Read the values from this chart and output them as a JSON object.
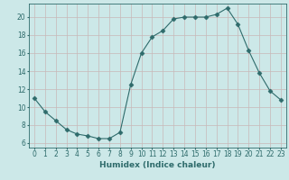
{
  "x": [
    0,
    1,
    2,
    3,
    4,
    5,
    6,
    7,
    8,
    9,
    10,
    11,
    12,
    13,
    14,
    15,
    16,
    17,
    18,
    19,
    20,
    21,
    22,
    23
  ],
  "y": [
    11.0,
    9.5,
    8.5,
    7.5,
    7.0,
    6.8,
    6.5,
    6.5,
    7.2,
    12.5,
    16.0,
    17.8,
    18.5,
    19.8,
    20.0,
    20.0,
    20.0,
    20.3,
    21.0,
    19.2,
    16.3,
    13.8,
    11.8,
    10.8
  ],
  "xlabel": "Humidex (Indice chaleur)",
  "xlim": [
    -0.5,
    23.5
  ],
  "ylim": [
    5.5,
    21.5
  ],
  "yticks": [
    6,
    8,
    10,
    12,
    14,
    16,
    18,
    20
  ],
  "xticks": [
    0,
    1,
    2,
    3,
    4,
    5,
    6,
    7,
    8,
    9,
    10,
    11,
    12,
    13,
    14,
    15,
    16,
    17,
    18,
    19,
    20,
    21,
    22,
    23
  ],
  "line_color": "#2e6b6b",
  "marker": "D",
  "marker_size": 2.5,
  "bg_color": "#cce8e8",
  "grid_color": "#c8b8b8",
  "text_color": "#2e6b6b",
  "label_fontsize": 6.5,
  "tick_fontsize": 5.5
}
